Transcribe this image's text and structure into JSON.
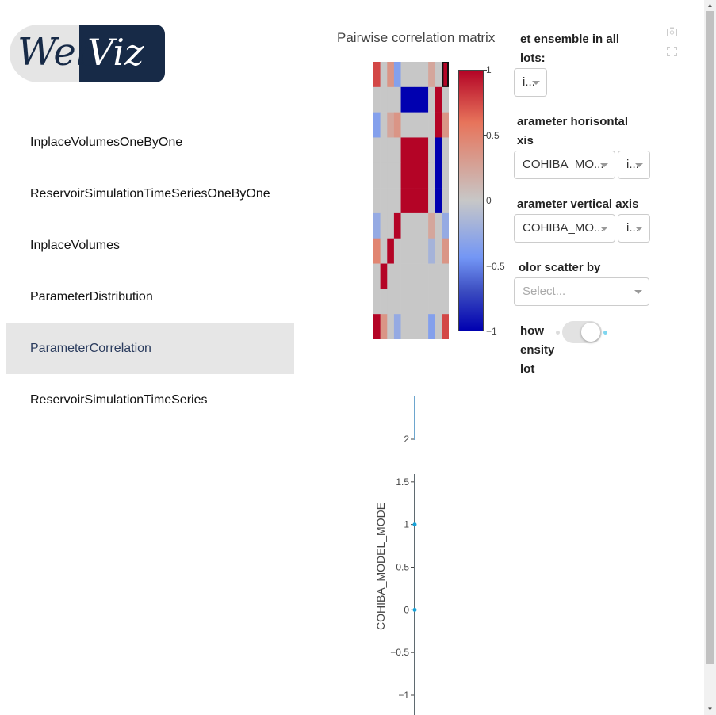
{
  "logo": {
    "text_left": "Web",
    "text_right": "Viz"
  },
  "nav": {
    "items": [
      {
        "label": "InplaceVolumesOneByOne",
        "active": false
      },
      {
        "label": "ReservoirSimulationTimeSeriesOneByOne",
        "active": false
      },
      {
        "label": "InplaceVolumes",
        "active": false
      },
      {
        "label": "ParameterDistribution",
        "active": false
      },
      {
        "label": "ParameterCorrelation",
        "active": true
      },
      {
        "label": "ReservoirSimulationTimeSeries",
        "active": false
      }
    ]
  },
  "chart_data": [
    {
      "type": "heatmap",
      "title": "Pairwise correlation matrix",
      "colorscale": [
        "#b40426",
        "#e7745b",
        "#c7c7c7",
        "#7396f5",
        "#0000b0"
      ],
      "zlim": [
        -1,
        1
      ],
      "colorbar_ticks": [
        "1",
        "0.5",
        "0",
        "−0.5",
        "−1"
      ],
      "cols": 11,
      "rows": 11,
      "z": [
        [
          0.7,
          0,
          0.3,
          -0.4,
          0,
          0,
          0,
          0,
          0.2,
          0,
          1
        ],
        [
          0,
          0,
          0,
          0,
          -1,
          -1,
          -1,
          -1,
          0,
          1,
          0
        ],
        [
          -0.4,
          0,
          0.2,
          0.3,
          0,
          0,
          0,
          0,
          0,
          1,
          0.3
        ],
        [
          0,
          0,
          0,
          0,
          1,
          1,
          1,
          1,
          0,
          -1,
          0
        ],
        [
          0,
          0,
          0,
          0,
          1,
          1,
          1,
          1,
          0,
          -1,
          0
        ],
        [
          0,
          0,
          0,
          0,
          1,
          1,
          1,
          1,
          0,
          -1,
          0
        ],
        [
          -0.3,
          0,
          0,
          1,
          0,
          0,
          0,
          0,
          0.2,
          0,
          -0.3
        ],
        [
          0.4,
          0,
          1,
          0,
          0,
          0,
          0,
          0,
          -0.2,
          0,
          0.3
        ],
        [
          0,
          1,
          0,
          0,
          0,
          0,
          0,
          0,
          0,
          0,
          0
        ],
        [
          0,
          0,
          0,
          0,
          0,
          0,
          0,
          0,
          0,
          0,
          0
        ],
        [
          1,
          0.3,
          0,
          -0.3,
          0,
          0,
          0,
          0,
          -0.4,
          0,
          0.7
        ]
      ]
    },
    {
      "type": "scatter",
      "ylabel": "COHIBA_MODEL_MODE",
      "yticks": [
        2,
        1.5,
        1,
        0.5,
        0,
        -0.5,
        -1
      ],
      "ytick_labels": [
        "2",
        "1.5",
        "1",
        "0.5",
        "0",
        "−0.5",
        "−1"
      ],
      "ylim": [
        -1.1,
        2.5
      ],
      "points": [
        {
          "y": 1
        },
        {
          "y": 0
        }
      ]
    }
  ],
  "controls": {
    "ensemble_label": "Set ensemble in all plots:",
    "ensemble_label_line1": "et ensemble in all",
    "ensemble_label_line2": "lots:",
    "ensemble_value": "i...",
    "horiz_label_line1": "arameter horisontal",
    "horiz_label_line2": "xis",
    "horiz_param_value": "COHIBA_MO...",
    "horiz_ens_value": "i...",
    "vert_label": "arameter vertical axis",
    "vert_param_value": "COHIBA_MO...",
    "vert_ens_value": "i...",
    "color_label": "olor scatter by",
    "color_placeholder": "Select...",
    "density_line1": "how",
    "density_line2": "ensity",
    "density_line3": "lot",
    "density_on": false
  },
  "icons": {
    "camera": "camera-icon",
    "fullscreen": "fullscreen-icon"
  }
}
